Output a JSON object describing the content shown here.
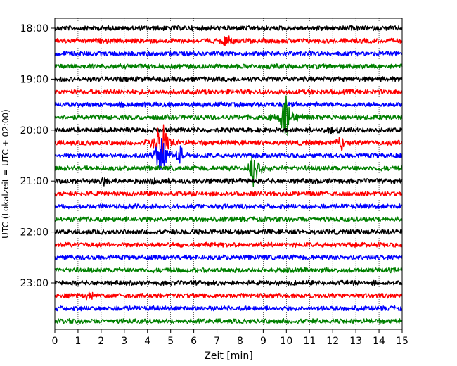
{
  "chart_data": {
    "type": "line",
    "title": "",
    "xlabel": "Zeit  [min]",
    "ylabel": "UTC (Lokalzeit = UTC + 02:00)",
    "xlim": [
      0,
      15
    ],
    "x_ticks": [
      "0",
      "1",
      "2",
      "3",
      "4",
      "5",
      "6",
      "7",
      "8",
      "9",
      "10",
      "11",
      "12",
      "13",
      "14",
      "15"
    ],
    "grid": "vertical dotted at each minute",
    "y_tick_labels": [
      "18:00",
      "19:00",
      "20:00",
      "21:00",
      "22:00",
      "23:00"
    ],
    "trace_interval_minutes": 15,
    "colors": [
      "#000000",
      "#ff0000",
      "#0000ff",
      "#008000"
    ],
    "trace_start_times": [
      "18:00",
      "18:15",
      "18:30",
      "18:45",
      "19:00",
      "19:15",
      "19:30",
      "19:45",
      "20:00",
      "20:15",
      "20:30",
      "20:45",
      "21:00",
      "21:15",
      "21:30",
      "21:45",
      "22:00",
      "22:15",
      "22:30",
      "22:45",
      "23:00",
      "23:15",
      "23:30",
      "23:45"
    ],
    "events": [
      {
        "trace": "18:15",
        "minute": 7.4,
        "amplitude": 0.5
      },
      {
        "trace": "19:45",
        "minute": 10.0,
        "amplitude": 2.0
      },
      {
        "trace": "20:00",
        "minute": 12.0,
        "amplitude": 0.4
      },
      {
        "trace": "20:15",
        "minute": 4.6,
        "amplitude": 2.4
      },
      {
        "trace": "20:15",
        "minute": 12.4,
        "amplitude": 0.6
      },
      {
        "trace": "20:30",
        "minute": 4.6,
        "amplitude": 1.8
      },
      {
        "trace": "20:30",
        "minute": 5.4,
        "amplitude": 0.7
      },
      {
        "trace": "20:45",
        "minute": 8.6,
        "amplitude": 1.6
      },
      {
        "trace": "21:00",
        "minute": 2.1,
        "amplitude": 0.4
      },
      {
        "trace": "21:00",
        "minute": 4.3,
        "amplitude": 0.3
      },
      {
        "trace": "23:15",
        "minute": 1.5,
        "amplitude": 0.3
      }
    ]
  }
}
